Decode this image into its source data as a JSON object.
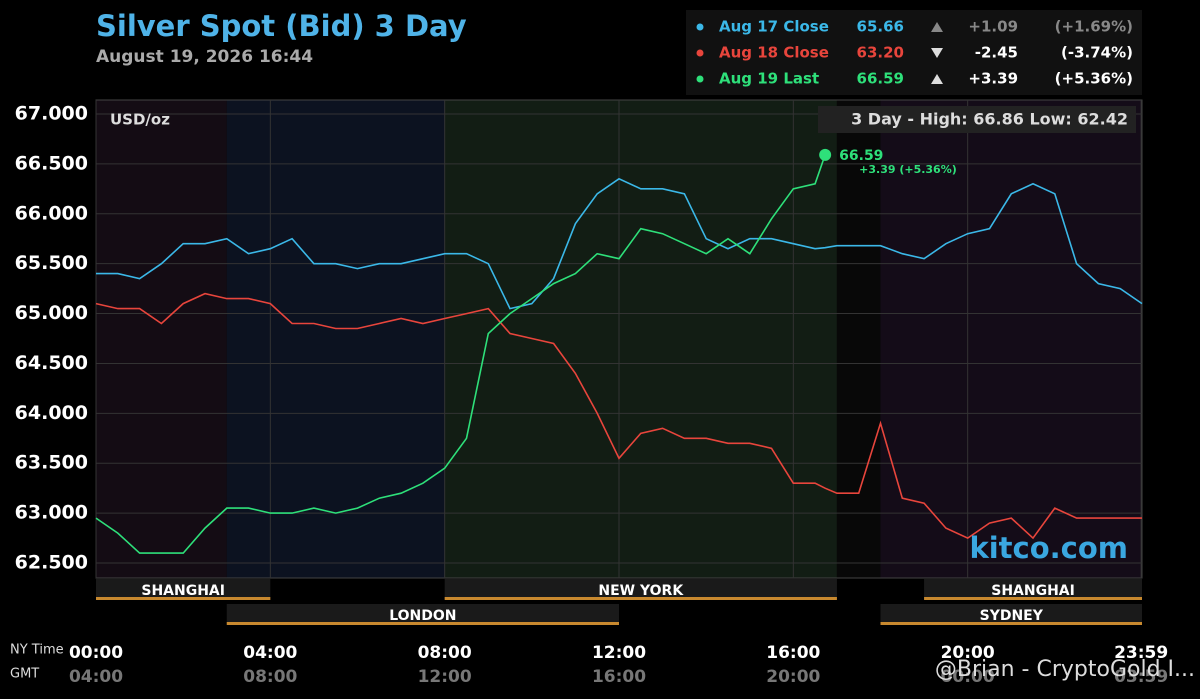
{
  "chart_data": {
    "type": "line",
    "title": "Silver Spot (Bid) 3 Day",
    "subtitle": "August 19, 2026 16:44",
    "unit_label": "USD/oz",
    "high_low": "3 Day - High: 66.86  Low: 62.42",
    "watermark": "kitco.com",
    "overlay_text": "@Brian - CryptoGold I...",
    "x_axis_label": "NY Time",
    "x2_axis_label": "GMT",
    "xlim": [
      0,
      24
    ],
    "ylim": [
      62.35,
      67.14
    ],
    "yticks": [
      {
        "value": 62.5,
        "label": "62.500"
      },
      {
        "value": 63,
        "label": "63.000"
      },
      {
        "value": 63.5,
        "label": "63.500"
      },
      {
        "value": 64,
        "label": "64.000"
      },
      {
        "value": 64.5,
        "label": "64.500"
      },
      {
        "value": 65,
        "label": "65.000"
      },
      {
        "value": 65.5,
        "label": "65.500"
      },
      {
        "value": 66,
        "label": "66.000"
      },
      {
        "value": 66.5,
        "label": "66.500"
      },
      {
        "value": 67,
        "label": "67.000"
      }
    ],
    "xticks": [
      {
        "value": 0,
        "label": "00:00"
      },
      {
        "value": 4,
        "label": "04:00"
      },
      {
        "value": 8,
        "label": "08:00"
      },
      {
        "value": 12,
        "label": "12:00"
      },
      {
        "value": 16,
        "label": "16:00"
      },
      {
        "value": 20,
        "label": "20:00"
      },
      {
        "value": 23.98,
        "label": "23:59"
      }
    ],
    "x2ticks": [
      {
        "value": 0,
        "label": "04:00"
      },
      {
        "value": 4,
        "label": "08:00"
      },
      {
        "value": 8,
        "label": "12:00"
      },
      {
        "value": 12,
        "label": "16:00"
      },
      {
        "value": 16,
        "label": "20:00"
      },
      {
        "value": 20,
        "label": "00:00"
      },
      {
        "value": 23.98,
        "label": "03:59"
      }
    ],
    "grid": true,
    "bands": [
      {
        "start": 0,
        "end": 3,
        "color": "#140c14"
      },
      {
        "start": 3,
        "end": 8,
        "color": "#0c1220"
      },
      {
        "start": 8,
        "end": 17,
        "color": "#121d14"
      },
      {
        "start": 17,
        "end": 18,
        "color": "#080808"
      },
      {
        "start": 18,
        "end": 24,
        "color": "#140c18"
      }
    ],
    "sessions": [
      {
        "label": "SHANGHAI",
        "start": 0,
        "end": 4,
        "row": 0
      },
      {
        "label": "NEW YORK",
        "start": 8,
        "end": 17,
        "row": 0
      },
      {
        "label": "SHANGHAI",
        "start": 19,
        "end": 24,
        "row": 0
      },
      {
        "label": "LONDON",
        "start": 3,
        "end": 12,
        "row": 1
      },
      {
        "label": "SYDNEY",
        "start": 18,
        "end": 24,
        "row": 1
      }
    ],
    "x": [
      0,
      0.5,
      1,
      1.5,
      2,
      2.5,
      3,
      3.5,
      4,
      4.5,
      5,
      5.5,
      6,
      6.5,
      7,
      7.5,
      8,
      8.5,
      9,
      9.5,
      10,
      10.5,
      11,
      11.5,
      12,
      12.5,
      13,
      13.5,
      14,
      14.5,
      15,
      15.5,
      16,
      16.5,
      16.73,
      17,
      17.5,
      18,
      18.5,
      19,
      19.5,
      20,
      20.5,
      21,
      21.5,
      22,
      22.5,
      23,
      23.5,
      24
    ],
    "series": [
      {
        "name": "Aug 17 Close",
        "color": "#3bb8e8",
        "summary": {
          "value": 65.66,
          "change": {
            "value": 1.09,
            "label": "+1.09"
          },
          "pct": {
            "value": 1.69,
            "label": "(+1.69%)"
          }
        },
        "values": [
          65.4,
          65.4,
          65.35,
          65.5,
          65.7,
          65.7,
          65.75,
          65.6,
          65.65,
          65.75,
          65.5,
          65.5,
          65.45,
          65.5,
          65.5,
          65.55,
          65.6,
          65.6,
          65.5,
          65.05,
          65.1,
          65.35,
          65.9,
          66.2,
          66.35,
          66.25,
          66.25,
          66.2,
          65.75,
          65.65,
          65.75,
          65.75,
          65.7,
          65.65,
          65.66,
          65.68,
          65.68,
          65.68,
          65.6,
          65.55,
          65.7,
          65.8,
          65.85,
          66.2,
          66.3,
          66.2,
          65.5,
          65.3,
          65.25,
          65.1
        ]
      },
      {
        "name": "Aug 18 Close",
        "color": "#e8453c",
        "summary": {
          "value": 63.2,
          "value_label": "63.20",
          "change": {
            "value": -2.45,
            "label": "-2.45"
          },
          "pct": {
            "value": -3.74,
            "label": "(-3.74%)"
          }
        },
        "values": [
          65.1,
          65.05,
          65.05,
          64.9,
          65.1,
          65.2,
          65.15,
          65.15,
          65.1,
          64.9,
          64.9,
          64.85,
          64.85,
          64.9,
          64.95,
          64.9,
          64.95,
          65.0,
          65.05,
          64.8,
          64.75,
          64.7,
          64.4,
          64.0,
          63.55,
          63.8,
          63.85,
          63.75,
          63.75,
          63.7,
          63.7,
          63.65,
          63.3,
          63.3,
          63.25,
          63.2,
          63.2,
          63.9,
          63.15,
          63.1,
          62.85,
          62.75,
          62.9,
          62.95,
          62.75,
          63.05,
          62.95,
          62.95,
          62.95,
          62.95
        ]
      },
      {
        "name": "Aug 19 Last",
        "color": "#2ee07a",
        "summary": {
          "value": 66.59,
          "change": {
            "value": 3.39,
            "label": "+3.39"
          },
          "pct": {
            "value": 5.36,
            "label": "(+5.36%)"
          }
        },
        "last_label": "+3.39 (+5.36%)",
        "values": [
          62.95,
          62.8,
          62.6,
          62.6,
          62.6,
          62.85,
          63.05,
          63.05,
          63.0,
          63.0,
          63.05,
          63.0,
          63.05,
          63.15,
          63.2,
          63.3,
          63.45,
          63.75,
          64.8,
          65.0,
          65.15,
          65.3,
          65.4,
          65.6,
          65.55,
          65.85,
          65.8,
          65.7,
          65.6,
          65.75,
          65.6,
          65.95,
          66.25,
          66.3,
          66.59,
          null,
          null,
          null,
          null,
          null,
          null,
          null,
          null,
          null,
          null,
          null,
          null,
          null,
          null,
          null
        ]
      }
    ]
  }
}
